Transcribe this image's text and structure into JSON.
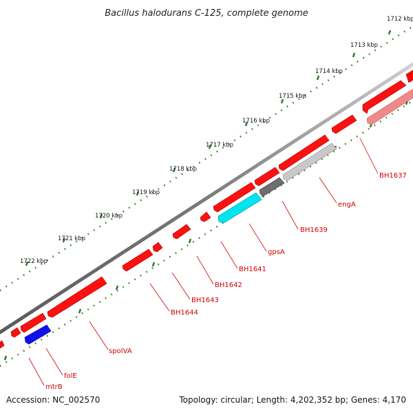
{
  "header": {
    "title": "Bacillus halodurans C-125, complete genome"
  },
  "footer": {
    "accession": "Accession: NC_002570",
    "summary": "Topology: circular; Length: 4,202,352 bp; Genes: 4,170"
  },
  "ruler": {
    "ticks": [
      "1712 kbp",
      "1713 kbp",
      "1714 kbp",
      "1715 kbp",
      "1716 kbp",
      "1717 kbp",
      "1718 kbp",
      "1719 kbp",
      "1720 kbp",
      "1721 kbp",
      "1722 kbp"
    ]
  },
  "genes": {
    "labels": [
      "BH1637",
      "engA",
      "BH1639",
      "gpsA",
      "BH1641",
      "BH1642",
      "BH1643",
      "BH1644",
      "spoIVA",
      "folE",
      "mtrB"
    ]
  },
  "colors": {
    "forward_gene": "#ff0000",
    "reverse_gene": "#ff0000",
    "highlight_cyan": "#00e5ee",
    "highlight_blue": "#1010ee",
    "gray_light": "#c8c8c8",
    "gray_dark": "#6e6e6e",
    "pink": "#f08a8a",
    "backbone": "#888888",
    "tick_green": "#2a7a2a",
    "label_red": "#cc0000"
  }
}
